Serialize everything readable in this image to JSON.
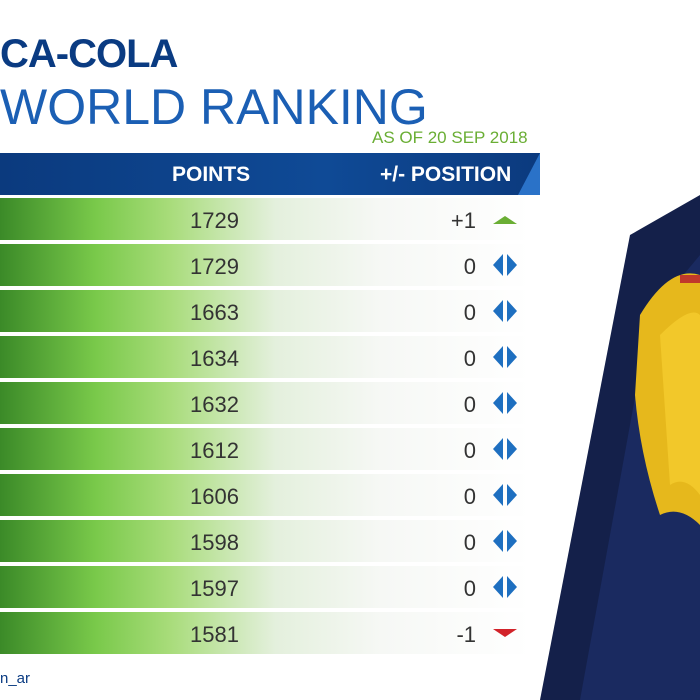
{
  "title": {
    "line1": "CA-COLA",
    "line2": "WORLD RANKING",
    "as_of": "AS OF 20 SEP 2018"
  },
  "table": {
    "headers": {
      "points": "POINTS",
      "position": "+/- POSITION"
    },
    "rows": [
      {
        "points": "1729",
        "change": "+1",
        "trend": "up"
      },
      {
        "points": "1729",
        "change": "0",
        "trend": "same"
      },
      {
        "points": "1663",
        "change": "0",
        "trend": "same"
      },
      {
        "points": "1634",
        "change": "0",
        "trend": "same"
      },
      {
        "points": "1632",
        "change": "0",
        "trend": "same"
      },
      {
        "points": "1612",
        "change": "0",
        "trend": "same"
      },
      {
        "points": "1606",
        "change": "0",
        "trend": "same"
      },
      {
        "points": "1598",
        "change": "0",
        "trend": "same"
      },
      {
        "points": "1597",
        "change": "0",
        "trend": "same"
      },
      {
        "points": "1581",
        "change": "-1",
        "trend": "down"
      }
    ]
  },
  "footer": {
    "handle": "n_ar"
  },
  "colors": {
    "up": "#6aae34",
    "down": "#d2232a",
    "same": "#1e6fc0"
  }
}
